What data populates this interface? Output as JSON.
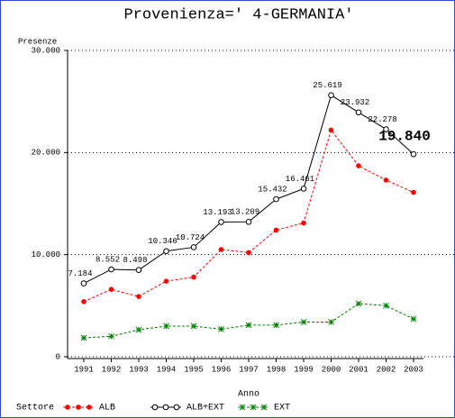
{
  "chart_data": {
    "type": "line",
    "title": "Provenienza=' 4-GERMANIA'",
    "y_label": "Presenze",
    "x_label": "Anno",
    "legend_title": "Settore",
    "categories": [
      "1991",
      "1992",
      "1993",
      "1994",
      "1995",
      "1996",
      "1997",
      "1998",
      "1999",
      "2000",
      "2001",
      "2002",
      "2003"
    ],
    "series": [
      {
        "name": "ALB",
        "color": "#ff0000",
        "marker": "dot",
        "dash": true,
        "values": [
          5400,
          6600,
          5900,
          7400,
          7800,
          10500,
          10200,
          12400,
          13100,
          22200,
          18700,
          17300,
          16100
        ]
      },
      {
        "name": "ALB+EXT",
        "color": "#000000",
        "marker": "circle",
        "dash": false,
        "values": [
          7184,
          8552,
          8498,
          10346,
          10724,
          13193,
          13209,
          15432,
          16461,
          25619,
          23932,
          22278,
          19840
        ],
        "value_labels": [
          "7.184",
          "8.552",
          "8.498",
          "10.346",
          "10.724",
          "13.193",
          "13.209",
          "15.432",
          "16.461",
          "25.619",
          "23.932",
          "22.278",
          "19.840"
        ]
      },
      {
        "name": "EXT",
        "color": "#008000",
        "marker": "star",
        "dash": true,
        "values": [
          1850,
          2000,
          2650,
          3000,
          3000,
          2700,
          3100,
          3100,
          3400,
          3400,
          5200,
          5000,
          3700
        ]
      }
    ],
    "ylim": [
      0,
      30000
    ],
    "yticks": [
      0,
      {
        "value": 10000,
        "label": "10.000"
      },
      {
        "value": 20000,
        "label": "20.000"
      },
      {
        "value": 30000,
        "label": "30.000"
      }
    ],
    "grid": true
  }
}
